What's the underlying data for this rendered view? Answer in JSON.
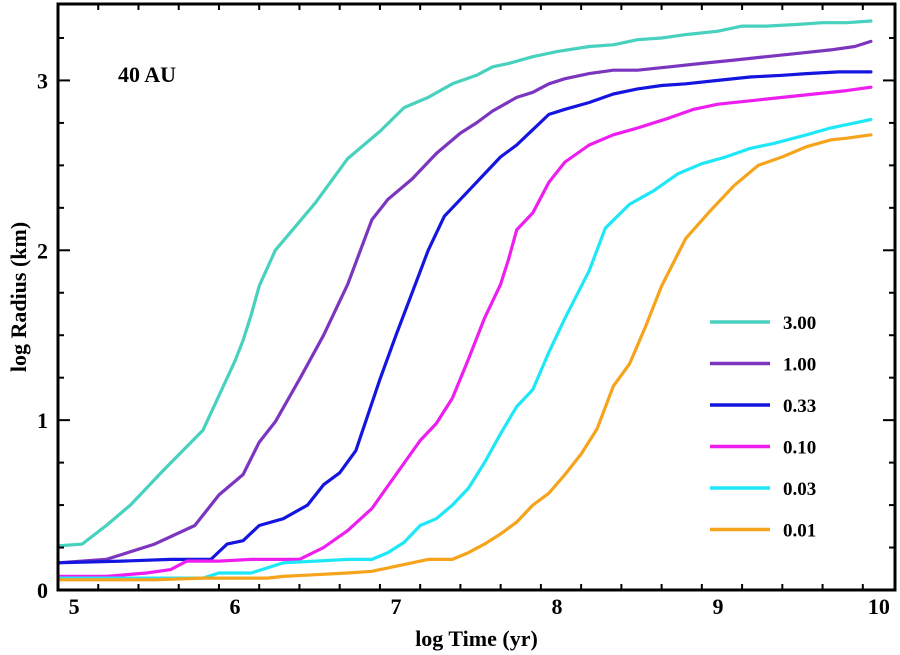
{
  "chart_data": {
    "type": "line",
    "title": "",
    "annotation": "40 AU",
    "xlabel": "log Time (yr)",
    "ylabel": "log Radius (km)",
    "xlim": [
      4.9,
      10.1
    ],
    "ylim": [
      0,
      3.45
    ],
    "xticks": [
      5,
      6,
      7,
      8,
      9,
      10
    ],
    "yticks": [
      0,
      1,
      2,
      3
    ],
    "xtick_labels": [
      "5",
      "6",
      "7",
      "8",
      "9",
      "10"
    ],
    "ytick_labels": [
      "0",
      "1",
      "2",
      "3"
    ],
    "grid": false,
    "legend_position": "right",
    "series": [
      {
        "name": "3.00",
        "color": "#48d1be",
        "x": [
          4.9,
          5.05,
          5.2,
          5.35,
          5.55,
          5.8,
          6.0,
          6.05,
          6.1,
          6.15,
          6.25,
          6.5,
          6.7,
          6.9,
          7.05,
          7.2,
          7.35,
          7.5,
          7.6,
          7.7,
          7.85,
          8.0,
          8.2,
          8.35,
          8.5,
          8.65,
          8.8,
          9.0,
          9.15,
          9.3,
          9.5,
          9.65,
          9.8,
          9.95
        ],
        "y": [
          0.26,
          0.27,
          0.38,
          0.5,
          0.7,
          0.94,
          1.35,
          1.47,
          1.62,
          1.79,
          2.0,
          2.28,
          2.54,
          2.7,
          2.84,
          2.9,
          2.98,
          3.03,
          3.08,
          3.1,
          3.14,
          3.17,
          3.2,
          3.21,
          3.24,
          3.25,
          3.27,
          3.29,
          3.32,
          3.32,
          3.33,
          3.34,
          3.34,
          3.35
        ]
      },
      {
        "name": "1.00",
        "color": "#7b35bf",
        "x": [
          4.9,
          5.2,
          5.5,
          5.75,
          5.9,
          6.05,
          6.15,
          6.25,
          6.4,
          6.55,
          6.7,
          6.85,
          6.95,
          7.1,
          7.25,
          7.4,
          7.5,
          7.6,
          7.75,
          7.85,
          7.95,
          8.05,
          8.2,
          8.35,
          8.5,
          8.7,
          8.9,
          9.1,
          9.3,
          9.5,
          9.7,
          9.85,
          9.95
        ],
        "y": [
          0.16,
          0.18,
          0.27,
          0.38,
          0.56,
          0.68,
          0.87,
          0.99,
          1.24,
          1.5,
          1.8,
          2.18,
          2.3,
          2.42,
          2.57,
          2.69,
          2.75,
          2.82,
          2.9,
          2.93,
          2.98,
          3.01,
          3.04,
          3.06,
          3.06,
          3.08,
          3.1,
          3.12,
          3.14,
          3.16,
          3.18,
          3.2,
          3.23
        ]
      },
      {
        "name": "0.33",
        "color": "#1515e0",
        "x": [
          4.9,
          5.3,
          5.6,
          5.75,
          5.85,
          5.95,
          6.05,
          6.15,
          6.3,
          6.45,
          6.55,
          6.65,
          6.75,
          6.9,
          7.0,
          7.1,
          7.2,
          7.3,
          7.45,
          7.55,
          7.65,
          7.75,
          7.85,
          7.95,
          8.05,
          8.2,
          8.35,
          8.5,
          8.65,
          8.8,
          9.0,
          9.2,
          9.4,
          9.55,
          9.75,
          9.95
        ],
        "y": [
          0.16,
          0.17,
          0.18,
          0.18,
          0.18,
          0.27,
          0.29,
          0.38,
          0.42,
          0.5,
          0.62,
          0.69,
          0.82,
          1.24,
          1.5,
          1.75,
          2.0,
          2.2,
          2.35,
          2.45,
          2.55,
          2.62,
          2.71,
          2.8,
          2.83,
          2.87,
          2.92,
          2.95,
          2.97,
          2.98,
          3.0,
          3.02,
          3.03,
          3.04,
          3.05,
          3.05
        ]
      },
      {
        "name": "0.10",
        "color": "#ee1ef0",
        "x": [
          4.9,
          5.2,
          5.45,
          5.6,
          5.7,
          5.9,
          6.1,
          6.2,
          6.4,
          6.55,
          6.7,
          6.85,
          7.0,
          7.15,
          7.25,
          7.35,
          7.45,
          7.55,
          7.65,
          7.7,
          7.75,
          7.85,
          7.95,
          8.05,
          8.2,
          8.35,
          8.5,
          8.7,
          8.85,
          9.0,
          9.2,
          9.4,
          9.6,
          9.8,
          9.95
        ],
        "y": [
          0.08,
          0.08,
          0.1,
          0.12,
          0.17,
          0.17,
          0.18,
          0.18,
          0.18,
          0.25,
          0.35,
          0.48,
          0.68,
          0.88,
          0.98,
          1.13,
          1.36,
          1.6,
          1.8,
          1.95,
          2.12,
          2.22,
          2.4,
          2.52,
          2.62,
          2.68,
          2.72,
          2.78,
          2.83,
          2.86,
          2.88,
          2.9,
          2.92,
          2.94,
          2.96
        ]
      },
      {
        "name": "0.03",
        "color": "#1ee8f8",
        "x": [
          4.9,
          5.3,
          5.6,
          5.8,
          5.9,
          6.1,
          6.3,
          6.5,
          6.7,
          6.85,
          6.95,
          7.05,
          7.15,
          7.25,
          7.35,
          7.45,
          7.55,
          7.65,
          7.75,
          7.85,
          7.95,
          8.05,
          8.2,
          8.3,
          8.45,
          8.6,
          8.75,
          8.9,
          9.05,
          9.2,
          9.35,
          9.55,
          9.7,
          9.85,
          9.95
        ],
        "y": [
          0.07,
          0.07,
          0.07,
          0.07,
          0.1,
          0.1,
          0.16,
          0.17,
          0.18,
          0.18,
          0.22,
          0.28,
          0.38,
          0.42,
          0.5,
          0.6,
          0.75,
          0.92,
          1.08,
          1.18,
          1.4,
          1.6,
          1.88,
          2.13,
          2.27,
          2.35,
          2.45,
          2.51,
          2.55,
          2.6,
          2.63,
          2.68,
          2.72,
          2.75,
          2.77
        ]
      },
      {
        "name": "0.01",
        "color": "#f5a41c",
        "x": [
          4.9,
          5.5,
          5.8,
          6.0,
          6.2,
          6.3,
          6.5,
          6.7,
          6.85,
          6.95,
          7.1,
          7.2,
          7.35,
          7.45,
          7.55,
          7.65,
          7.75,
          7.85,
          7.95,
          8.05,
          8.15,
          8.25,
          8.35,
          8.45,
          8.55,
          8.65,
          8.8,
          8.95,
          9.1,
          9.25,
          9.4,
          9.55,
          9.7,
          9.8,
          9.95
        ],
        "y": [
          0.06,
          0.06,
          0.07,
          0.07,
          0.07,
          0.08,
          0.09,
          0.1,
          0.11,
          0.13,
          0.16,
          0.18,
          0.18,
          0.22,
          0.27,
          0.33,
          0.4,
          0.5,
          0.57,
          0.68,
          0.8,
          0.95,
          1.2,
          1.33,
          1.55,
          1.79,
          2.07,
          2.23,
          2.38,
          2.5,
          2.55,
          2.61,
          2.65,
          2.66,
          2.68
        ]
      }
    ]
  }
}
